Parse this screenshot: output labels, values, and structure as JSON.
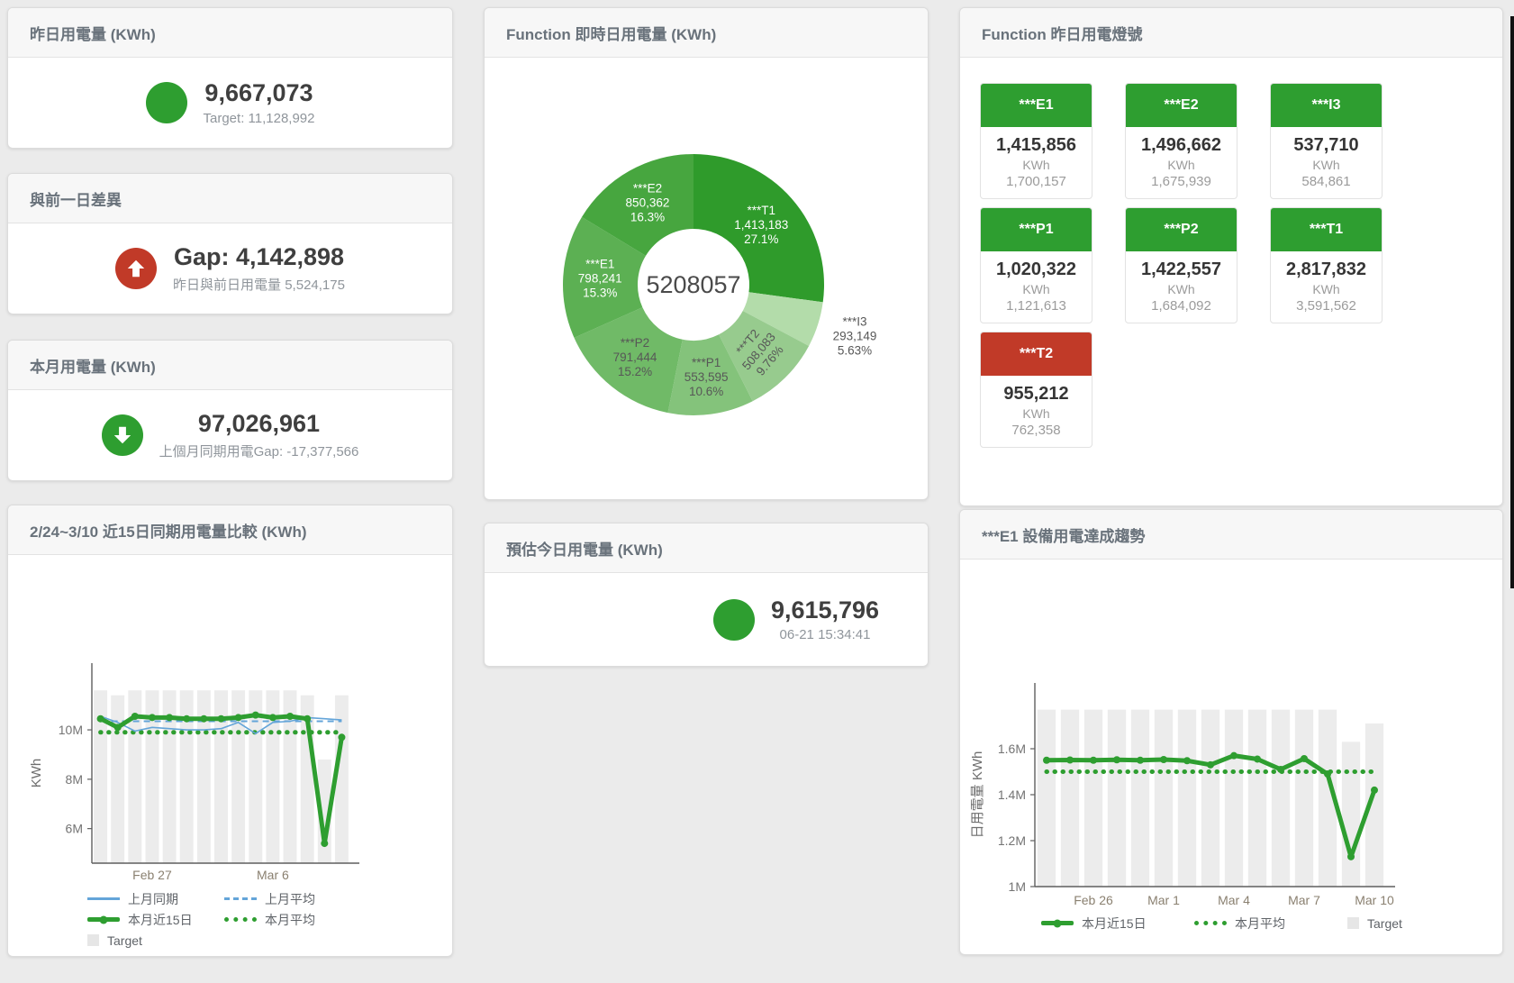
{
  "stat_cards": {
    "yesterday": {
      "title": "昨日用電量 (KWh)",
      "value": "9,667,073",
      "subtitle": "Target: 11,128,992",
      "indicator": "circle",
      "color": "#2e9e30"
    },
    "diff": {
      "title": "與前一日差異",
      "value": "Gap: 4,142,898",
      "subtitle": "昨日與前日用電量 5,524,175",
      "indicator": "arrow-up",
      "color": "#c13a28"
    },
    "month": {
      "title": "本月用電量 (KWh)",
      "value": "97,026,961",
      "subtitle": "上個月同期用電Gap: -17,377,566",
      "indicator": "arrow-down",
      "color": "#2e9e30"
    },
    "today_estimate": {
      "title": "預估今日用電量 (KWh)",
      "value": "9,615,796",
      "subtitle": "06-21 15:34:41",
      "indicator": "circle",
      "color": "#2e9e30"
    }
  },
  "lights_panel": {
    "title": "Function 昨日用電燈號",
    "tiles": [
      {
        "name": "***E1",
        "value": "1,415,856",
        "unit": "KWh",
        "target": "1,700,157",
        "header_color": "#2e9e30"
      },
      {
        "name": "***E2",
        "value": "1,496,662",
        "unit": "KWh",
        "target": "1,675,939",
        "header_color": "#2e9e30"
      },
      {
        "name": "***I3",
        "value": "537,710",
        "unit": "KWh",
        "target": "584,861",
        "header_color": "#2e9e30"
      },
      {
        "name": "***P1",
        "value": "1,020,322",
        "unit": "KWh",
        "target": "1,121,613",
        "header_color": "#2e9e30"
      },
      {
        "name": "***P2",
        "value": "1,422,557",
        "unit": "KWh",
        "target": "1,684,092",
        "header_color": "#2e9e30"
      },
      {
        "name": "***T1",
        "value": "2,817,832",
        "unit": "KWh",
        "target": "3,591,562",
        "header_color": "#2e9e30"
      },
      {
        "name": "***T2",
        "value": "955,212",
        "unit": "KWh",
        "target": "762,358",
        "header_color": "#c13a28"
      }
    ]
  },
  "chart_data": [
    {
      "type": "pie",
      "title": "Function 即時日用電量 (KWh)",
      "center_total": "5208057",
      "slices": [
        {
          "name": "***T1",
          "value": 1413183,
          "display": "1,413,183",
          "pct": "27.1%",
          "color": "#2f9b2b",
          "label_color": "#ffffff"
        },
        {
          "name": "***I3",
          "value": 293149,
          "display": "293,149",
          "pct": "5.63%",
          "color": "#b3dcaa",
          "label_color": "#575757",
          "outside": true
        },
        {
          "name": "***T2",
          "value": 508083,
          "display": "508,083",
          "pct": "9.76%",
          "color": "#97cb8e",
          "label_color": "#575757",
          "rotate": -50
        },
        {
          "name": "***P1",
          "value": 553595,
          "display": "553,595",
          "pct": "10.6%",
          "color": "#84c37b",
          "label_color": "#575757"
        },
        {
          "name": "***P2",
          "value": 791444,
          "display": "791,444",
          "pct": "15.2%",
          "color": "#70ba67",
          "label_color": "#575757"
        },
        {
          "name": "***E1",
          "value": 798241,
          "display": "798,241",
          "pct": "15.3%",
          "color": "#5cb053",
          "label_color": "#ffffff"
        },
        {
          "name": "***E2",
          "value": 850362,
          "display": "850,362",
          "pct": "16.3%",
          "color": "#47a63f",
          "label_color": "#ffffff"
        }
      ]
    },
    {
      "type": "line",
      "title": "2/24~3/10 近15日同期用電量比較 (KWh)",
      "ylabel": "KWh",
      "values_unit": "millions of KWh",
      "categories": [
        "2/24",
        "2/25",
        "2/26",
        "2/27",
        "2/28",
        "3/1",
        "3/2",
        "3/3",
        "3/4",
        "3/5",
        "3/6",
        "3/7",
        "3/8",
        "3/9",
        "3/10"
      ],
      "ylim": [
        4.6,
        11.9
      ],
      "yticks": [
        {
          "v": 6,
          "label": "6M"
        },
        {
          "v": 8,
          "label": "8M"
        },
        {
          "v": 10,
          "label": "10M"
        }
      ],
      "xticks": [
        {
          "i": 3,
          "label": "Feb 27"
        },
        {
          "i": 10,
          "label": "Mar 6"
        }
      ],
      "bars": {
        "name": "Target",
        "color": "#ececec",
        "values": [
          11.6,
          11.4,
          11.6,
          11.6,
          11.6,
          11.6,
          11.6,
          11.6,
          11.6,
          11.6,
          11.6,
          11.6,
          11.4,
          8.8,
          11.4
        ]
      },
      "series": [
        {
          "name": "上月平均",
          "color": "#64a5d9",
          "width": 2,
          "dash": "7 5",
          "const": 10.35
        },
        {
          "name": "本月平均",
          "color": "#2e9e30",
          "width": 5,
          "dash": "0.5 8.5",
          "linecap": "round",
          "const": 9.9
        },
        {
          "name": "上月同期",
          "color": "#64a5d9",
          "width": 1.6,
          "values": [
            10.55,
            10.3,
            9.95,
            10.1,
            10.05,
            10.0,
            10.0,
            10.05,
            10.3,
            9.85,
            10.3,
            10.35,
            10.5,
            10.45,
            10.4
          ]
        },
        {
          "name": "本月近15日",
          "color": "#2e9e30",
          "width": 5,
          "marker": 4,
          "values": [
            10.45,
            10.1,
            10.55,
            10.5,
            10.5,
            10.45,
            10.45,
            10.45,
            10.5,
            10.6,
            10.5,
            10.55,
            10.45,
            5.4,
            9.7
          ]
        }
      ],
      "legend": [
        {
          "label": "上月同期",
          "swatch": "line-blue"
        },
        {
          "label": "上月平均",
          "swatch": "dash-blue"
        },
        {
          "label": "本月近15日",
          "swatch": "thick-green"
        },
        {
          "label": "本月平均",
          "swatch": "dots-green"
        },
        {
          "label": "Target",
          "swatch": "box-gray"
        }
      ]
    },
    {
      "type": "line",
      "title": "***E1 設備用電達成趨勢",
      "ylabel": "日用電量 KWh",
      "values_unit": "millions of KWh",
      "categories": [
        "2/24",
        "2/25",
        "2/26",
        "2/27",
        "2/28",
        "3/1",
        "3/2",
        "3/3",
        "3/4",
        "3/5",
        "3/6",
        "3/7",
        "3/8",
        "3/9",
        "3/10"
      ],
      "ylim": [
        1.0,
        1.8
      ],
      "yticks": [
        {
          "v": 1,
          "label": "1M"
        },
        {
          "v": 1.2,
          "label": "1.2M"
        },
        {
          "v": 1.4,
          "label": "1.4M"
        },
        {
          "v": 1.6,
          "label": "1.6M"
        }
      ],
      "xticks": [
        {
          "i": 2,
          "label": "Feb 26"
        },
        {
          "i": 5,
          "label": "Mar 1"
        },
        {
          "i": 8,
          "label": "Mar 4"
        },
        {
          "i": 11,
          "label": "Mar 7"
        },
        {
          "i": 14,
          "label": "Mar 10"
        }
      ],
      "bars": {
        "name": "Target",
        "color": "#ececec",
        "values": [
          1.77,
          1.77,
          1.77,
          1.77,
          1.77,
          1.77,
          1.77,
          1.77,
          1.77,
          1.77,
          1.77,
          1.77,
          1.77,
          1.63,
          1.71
        ]
      },
      "series": [
        {
          "name": "本月平均",
          "color": "#2e9e30",
          "width": 5,
          "dash": "0.5 8.5",
          "linecap": "round",
          "const": 1.5
        },
        {
          "name": "本月近15日",
          "color": "#2e9e30",
          "width": 5,
          "marker": 4,
          "values": [
            1.55,
            1.551,
            1.55,
            1.552,
            1.55,
            1.553,
            1.548,
            1.53,
            1.57,
            1.555,
            1.51,
            1.557,
            1.49,
            1.13,
            1.42
          ]
        }
      ],
      "legend": [
        {
          "label": "本月近15日",
          "swatch": "thick-green"
        },
        {
          "label": "本月平均",
          "swatch": "dots-green"
        },
        {
          "label": "Target",
          "swatch": "box-gray"
        }
      ]
    }
  ]
}
